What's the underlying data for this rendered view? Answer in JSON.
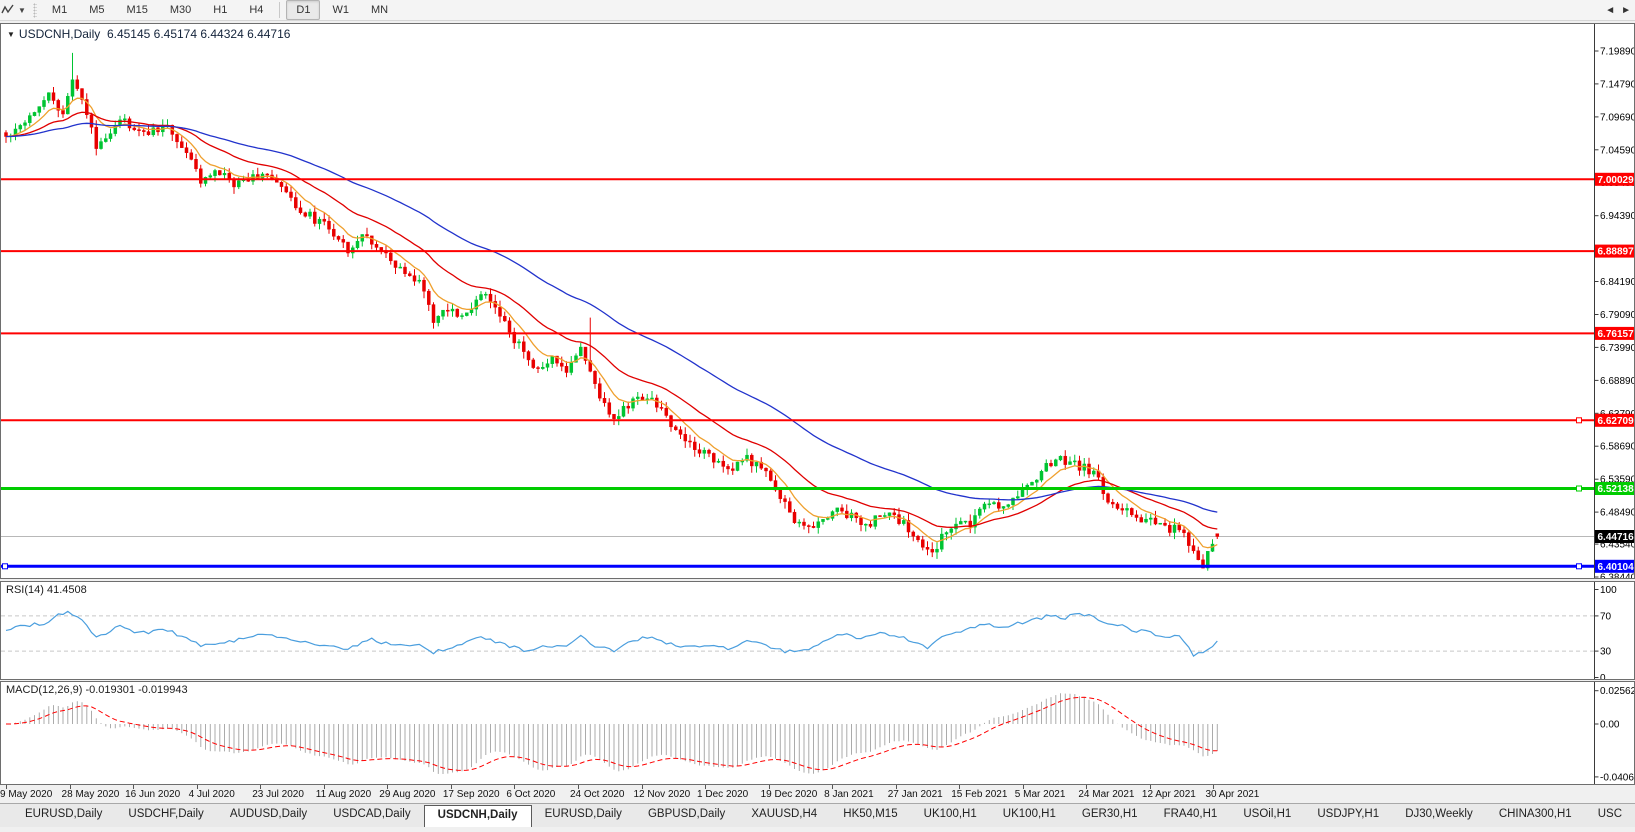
{
  "toolbar": {
    "timeframes": [
      "M1",
      "M5",
      "M15",
      "M30",
      "H1",
      "H4",
      "D1",
      "W1",
      "MN"
    ],
    "active_timeframe": "D1"
  },
  "main_chart": {
    "collapse_icon": "▼",
    "title": "USDCNH,Daily",
    "ohlc_text": "6.45145 6.45174 6.44324 6.44716",
    "y_ticks": [
      "7.19890",
      "7.14790",
      "7.09690",
      "7.04590",
      "6.99490",
      "6.94390",
      "6.89290",
      "6.84190",
      "6.79090",
      "6.73990",
      "6.68890",
      "6.63790",
      "6.58690",
      "6.53590",
      "6.48490",
      "6.43540",
      "6.38440"
    ],
    "hlines": [
      {
        "value": 7.00029,
        "label": "7.00029",
        "color": "#FF0000",
        "width": 2,
        "handles": []
      },
      {
        "value": 6.88897,
        "label": "6.88897",
        "color": "#FF0000",
        "width": 2,
        "handles": []
      },
      {
        "value": 6.76157,
        "label": "6.76157",
        "color": "#FF0000",
        "width": 2,
        "handles": []
      },
      {
        "value": 6.62709,
        "label": "6.62709",
        "color": "#FF0000",
        "width": 2,
        "handles": [
          "right"
        ]
      },
      {
        "value": 6.52138,
        "label": "6.52138",
        "color": "#00CC00",
        "width": 3,
        "handles": [
          "right"
        ]
      },
      {
        "value": 6.40104,
        "label": "6.40104",
        "color": "#0000FF",
        "width": 3,
        "handles": [
          "left",
          "right"
        ]
      }
    ],
    "price_line": {
      "value": 6.44716,
      "label": "6.44716",
      "line_color": "#B8B8B8",
      "tag_bg": "#000000"
    }
  },
  "rsi_panel": {
    "label": "RSI(14) 41.4508",
    "ticks": [
      {
        "v": 100,
        "label": "100",
        "dashed": false
      },
      {
        "v": 70,
        "label": "70",
        "dashed": true
      },
      {
        "v": 30,
        "label": "30",
        "dashed": true
      },
      {
        "v": 0,
        "label": "0",
        "dashed": false
      }
    ],
    "line_color": "#4A9EDE"
  },
  "macd_panel": {
    "label": "MACD(12,26,9) -0.019301 -0.019943",
    "ticks": [
      {
        "v": 0.025623,
        "label": "0.025623"
      },
      {
        "v": 0,
        "label": "0.00"
      },
      {
        "v": -0.04068,
        "label": "-0.04068"
      }
    ],
    "bar_color": "#ABABAB",
    "signal_color": "#FF0000"
  },
  "x_axis": {
    "dates": [
      "9 May 2020",
      "28 May 2020",
      "16 Jun 2020",
      "4 Jul 2020",
      "23 Jul 2020",
      "11 Aug 2020",
      "29 Aug 2020",
      "17 Sep 2020",
      "6 Oct 2020",
      "24 Oct 2020",
      "12 Nov 2020",
      "1 Dec 2020",
      "19 Dec 2020",
      "8 Jan 2021",
      "27 Jan 2021",
      "15 Feb 2021",
      "5 Mar 2021",
      "24 Mar 2021",
      "12 Apr 2021",
      "30 Apr 2021"
    ]
  },
  "tabs": {
    "items": [
      "EURUSD,Daily",
      "USDCHF,Daily",
      "AUDUSD,Daily",
      "USDCAD,Daily",
      "USDCNH,Daily",
      "EURUSD,Daily",
      "GBPUSD,Daily",
      "XAUUSD,H4",
      "HK50,M15",
      "UK100,H1",
      "UK100,H1",
      "GER30,H1",
      "FRA40,H1",
      "USOil,H1",
      "USDJPY,H1",
      "DJ30,Weekly",
      "CHINA300,H1",
      "USC"
    ],
    "active_index": 4,
    "scroll_left_icon": "◄",
    "scroll_right_icon": "►"
  },
  "chart_data": {
    "type": "candlestick",
    "symbol": "USDCNH",
    "timeframe": "Daily",
    "candle_count": 256,
    "visible_price_range": [
      6.3844,
      7.1989
    ],
    "last_ohlc": {
      "open": 6.45145,
      "high": 6.45174,
      "low": 6.44324,
      "close": 6.44716
    },
    "up_color": "#00C432",
    "down_color": "#E80000",
    "close_path": [
      [
        0,
        7.065
      ],
      [
        5,
        7.1
      ],
      [
        9,
        7.135
      ],
      [
        12,
        7.095
      ],
      [
        14,
        7.16
      ],
      [
        16,
        7.125
      ],
      [
        19,
        7.05
      ],
      [
        24,
        7.095
      ],
      [
        28,
        7.07
      ],
      [
        34,
        7.082
      ],
      [
        38,
        7.04
      ],
      [
        41,
        7.0
      ],
      [
        45,
        7.01
      ],
      [
        48,
        6.992
      ],
      [
        54,
        7.012
      ],
      [
        58,
        6.985
      ],
      [
        62,
        6.952
      ],
      [
        68,
        6.925
      ],
      [
        72,
        6.893
      ],
      [
        75,
        6.912
      ],
      [
        78,
        6.9
      ],
      [
        82,
        6.862
      ],
      [
        87,
        6.843
      ],
      [
        90,
        6.782
      ],
      [
        93,
        6.797
      ],
      [
        97,
        6.788
      ],
      [
        100,
        6.826
      ],
      [
        104,
        6.79
      ],
      [
        107,
        6.752
      ],
      [
        110,
        6.722
      ],
      [
        112,
        6.703
      ],
      [
        115,
        6.722
      ],
      [
        118,
        6.7
      ],
      [
        121,
        6.742
      ],
      [
        124,
        6.678
      ],
      [
        128,
        6.628
      ],
      [
        132,
        6.658
      ],
      [
        136,
        6.662
      ],
      [
        139,
        6.632
      ],
      [
        142,
        6.602
      ],
      [
        147,
        6.578
      ],
      [
        150,
        6.562
      ],
      [
        153,
        6.552
      ],
      [
        156,
        6.568
      ],
      [
        159,
        6.552
      ],
      [
        162,
        6.522
      ],
      [
        165,
        6.482
      ],
      [
        168,
        6.458
      ],
      [
        172,
        6.472
      ],
      [
        175,
        6.492
      ],
      [
        178,
        6.478
      ],
      [
        181,
        6.462
      ],
      [
        184,
        6.482
      ],
      [
        188,
        6.472
      ],
      [
        190,
        6.458
      ],
      [
        193,
        6.432
      ],
      [
        195,
        6.418
      ],
      [
        198,
        6.458
      ],
      [
        200,
        6.472
      ],
      [
        203,
        6.462
      ],
      [
        206,
        6.502
      ],
      [
        209,
        6.492
      ],
      [
        213,
        6.512
      ],
      [
        216,
        6.532
      ],
      [
        219,
        6.558
      ],
      [
        222,
        6.568
      ],
      [
        225,
        6.558
      ],
      [
        229,
        6.548
      ],
      [
        232,
        6.502
      ],
      [
        235,
        6.492
      ],
      [
        238,
        6.478
      ],
      [
        241,
        6.472
      ],
      [
        244,
        6.458
      ],
      [
        247,
        6.462
      ],
      [
        250,
        6.418
      ],
      [
        252,
        6.403
      ],
      [
        255,
        6.447
      ]
    ],
    "wick_spikes": [
      {
        "i": 14,
        "high": 7.196
      },
      {
        "i": 123,
        "high": 6.786
      }
    ],
    "moving_averages": [
      {
        "name": "fast",
        "period": 8,
        "color": "#EFA02E"
      },
      {
        "name": "mid",
        "period": 24,
        "color": "#E00000"
      },
      {
        "name": "slow",
        "period": 58,
        "color": "#2233CC"
      }
    ],
    "rsi": {
      "period": 14,
      "last_value": 41.4508,
      "path": [
        [
          0,
          55
        ],
        [
          8,
          62
        ],
        [
          13,
          76
        ],
        [
          16,
          66
        ],
        [
          19,
          46
        ],
        [
          24,
          58
        ],
        [
          28,
          50
        ],
        [
          34,
          54
        ],
        [
          41,
          36
        ],
        [
          48,
          42
        ],
        [
          54,
          50
        ],
        [
          60,
          42
        ],
        [
          68,
          36
        ],
        [
          72,
          33
        ],
        [
          77,
          43
        ],
        [
          82,
          36
        ],
        [
          87,
          38
        ],
        [
          90,
          29
        ],
        [
          95,
          36
        ],
        [
          100,
          46
        ],
        [
          104,
          39
        ],
        [
          109,
          31
        ],
        [
          114,
          36
        ],
        [
          118,
          34
        ],
        [
          121,
          46
        ],
        [
          124,
          36
        ],
        [
          128,
          31
        ],
        [
          132,
          43
        ],
        [
          136,
          46
        ],
        [
          140,
          38
        ],
        [
          144,
          34
        ],
        [
          148,
          36
        ],
        [
          152,
          33
        ],
        [
          156,
          41
        ],
        [
          160,
          36
        ],
        [
          164,
          29
        ],
        [
          168,
          31
        ],
        [
          172,
          41
        ],
        [
          176,
          49
        ],
        [
          180,
          45
        ],
        [
          184,
          51
        ],
        [
          188,
          47
        ],
        [
          191,
          41
        ],
        [
          194,
          34
        ],
        [
          198,
          49
        ],
        [
          202,
          53
        ],
        [
          206,
          61
        ],
        [
          210,
          56
        ],
        [
          213,
          61
        ],
        [
          217,
          66
        ],
        [
          220,
          71
        ],
        [
          223,
          68
        ],
        [
          226,
          73
        ],
        [
          229,
          70
        ],
        [
          232,
          61
        ],
        [
          235,
          58
        ],
        [
          238,
          53
        ],
        [
          241,
          51
        ],
        [
          244,
          46
        ],
        [
          247,
          49
        ],
        [
          250,
          26
        ],
        [
          252,
          28
        ],
        [
          255,
          41.45
        ]
      ]
    },
    "macd": {
      "fast": 12,
      "slow": 26,
      "signal": 9,
      "last_macd": -0.019301,
      "last_signal": -0.019943
    }
  }
}
